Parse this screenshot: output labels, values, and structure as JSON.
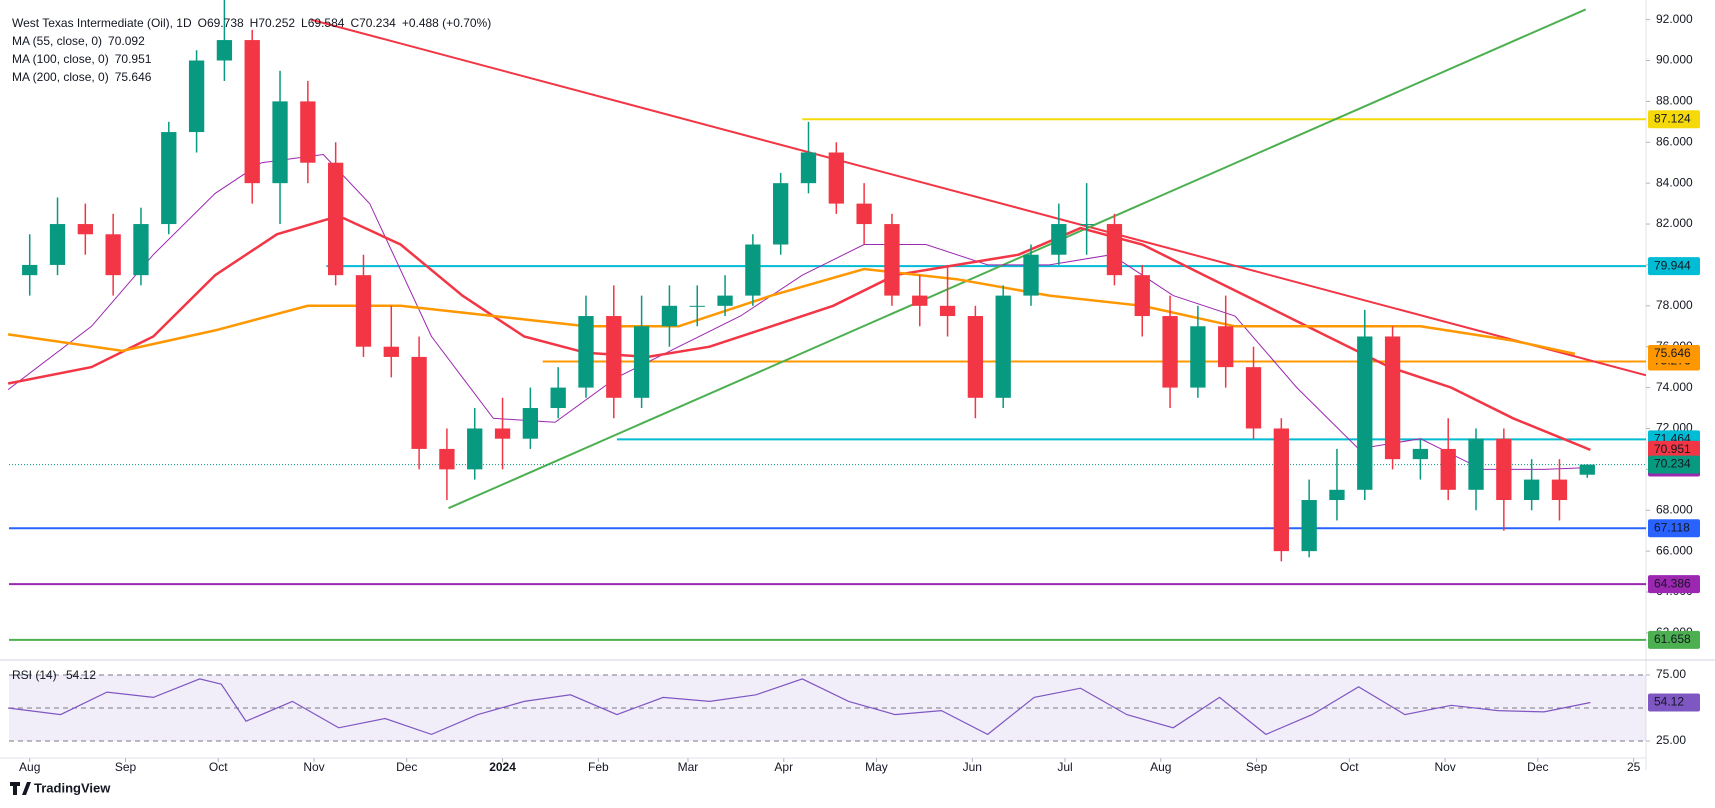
{
  "brand": "TradingView",
  "chart_data": {
    "type": "candlestick",
    "title": "West Texas Intermediate (Oil), 1D",
    "ohlc_labels": [
      "O69.738",
      "H70.252",
      "L69.584",
      "C70.234"
    ],
    "change_label": "+0.488 (+0.70%)",
    "x": [
      0,
      9,
      18,
      27,
      36,
      45,
      54,
      63,
      72,
      81,
      90,
      99,
      108,
      117,
      126,
      135,
      144,
      153,
      162,
      171,
      180,
      189,
      198,
      207,
      216,
      225,
      234,
      243,
      252,
      261,
      270,
      279,
      288,
      297,
      306,
      315,
      324,
      333,
      342,
      351,
      360,
      369,
      378,
      387,
      396,
      405,
      414,
      423,
      432,
      441,
      450,
      459,
      468,
      477,
      486,
      495,
      504
    ],
    "open": [
      79.5,
      80,
      82,
      81.5,
      79.5,
      82,
      86.5,
      90,
      91,
      84,
      88,
      85,
      79.5,
      76,
      75.5,
      71,
      70,
      72,
      71.5,
      73,
      74,
      77.5,
      73.5,
      77,
      78,
      78,
      78.5,
      81,
      84,
      85.5,
      83,
      82,
      78.5,
      78,
      77.5,
      73.5,
      78.5,
      80.5,
      82,
      82,
      79.5,
      77.5,
      74,
      77,
      75,
      72,
      66,
      68.5,
      69,
      76.5,
      70.5,
      71,
      69,
      71.5,
      68.5,
      69.5,
      69.738
    ],
    "high": [
      81.5,
      83.3,
      83,
      82.5,
      82.8,
      87,
      90.5,
      93.5,
      91.5,
      89.5,
      89,
      86,
      80.5,
      78,
      76.5,
      72,
      73,
      73.5,
      74,
      75,
      78.5,
      79,
      78.5,
      79,
      79,
      79.5,
      81.5,
      84.5,
      87,
      86,
      84,
      82.5,
      79.5,
      80,
      78,
      79,
      81,
      83,
      84,
      82.5,
      80,
      78.5,
      78,
      78.5,
      76,
      72.5,
      69.5,
      71,
      77.8,
      77,
      71.5,
      72.5,
      72,
      72,
      70.5,
      70.5,
      70.252
    ],
    "low": [
      78.5,
      79.5,
      80.5,
      78.5,
      79,
      81.5,
      85.5,
      89,
      83,
      82,
      84,
      79,
      75.5,
      74.5,
      70,
      68.5,
      69.5,
      70,
      71,
      72.5,
      73.5,
      72.5,
      73,
      76,
      77,
      77.5,
      78,
      80.5,
      83.5,
      82.5,
      81,
      78,
      77,
      76.5,
      72.5,
      73,
      78,
      80,
      80.5,
      79,
      76.5,
      73,
      73.5,
      74,
      71.5,
      65.5,
      65.7,
      67.5,
      68.5,
      70,
      69.5,
      68.5,
      68,
      67,
      68,
      67.5,
      69.584
    ],
    "close": [
      80,
      82,
      81.5,
      79.5,
      82,
      86.5,
      90,
      91,
      84,
      88,
      85,
      79.5,
      76,
      75.5,
      71,
      70,
      72,
      71.5,
      73,
      74,
      77.5,
      73.5,
      77,
      78,
      78,
      78.5,
      81,
      84,
      85.5,
      83,
      82,
      78.5,
      78,
      77.5,
      73.5,
      78.5,
      80.5,
      82,
      82,
      79.5,
      77.5,
      74,
      77,
      75,
      72,
      66,
      68.5,
      69,
      76.5,
      70.5,
      71,
      69,
      71.5,
      68.5,
      69.5,
      68.5,
      70.234
    ],
    "up_color": "#089981",
    "down_color": "#f23645",
    "xlim": [
      -6.7,
      523
    ],
    "ylim": [
      60.87,
      92.96
    ],
    "grid": false,
    "xticks": [
      {
        "value": 0,
        "label": "Aug"
      },
      {
        "value": 31,
        "label": "Sep"
      },
      {
        "value": 61,
        "label": "Oct"
      },
      {
        "value": 92,
        "label": "Nov"
      },
      {
        "value": 122,
        "label": "Dec"
      },
      {
        "value": 153,
        "label": "2024"
      },
      {
        "value": 184,
        "label": "Feb"
      },
      {
        "value": 213,
        "label": "Mar"
      },
      {
        "value": 244,
        "label": "Apr"
      },
      {
        "value": 274,
        "label": "May"
      },
      {
        "value": 305,
        "label": "Jun"
      },
      {
        "value": 335,
        "label": "Jul"
      },
      {
        "value": 366,
        "label": "Aug"
      },
      {
        "value": 397,
        "label": "Sep"
      },
      {
        "value": 427,
        "label": "Oct"
      },
      {
        "value": 458,
        "label": "Nov"
      },
      {
        "value": 488,
        "label": "Dec"
      },
      {
        "value": 519,
        "label": "25"
      }
    ],
    "yticks": [
      {
        "value": 62,
        "label": "62.000"
      },
      {
        "value": 64,
        "label": "64.000"
      },
      {
        "value": 66,
        "label": "66.000"
      },
      {
        "value": 68,
        "label": "68.000"
      },
      {
        "value": 70,
        "label": "70.000"
      },
      {
        "value": 72,
        "label": "72.000"
      },
      {
        "value": 74,
        "label": "74.000"
      },
      {
        "value": 76,
        "label": "76.000"
      },
      {
        "value": 78,
        "label": "78.000"
      },
      {
        "value": 80,
        "label": "80.000"
      },
      {
        "value": 82,
        "label": "82.000"
      },
      {
        "value": 84,
        "label": "84.000"
      },
      {
        "value": 86,
        "label": "86.000"
      },
      {
        "value": 88,
        "label": "88.000"
      },
      {
        "value": 90,
        "label": "90.000"
      },
      {
        "value": 92,
        "label": "92.000"
      }
    ],
    "ma": [
      {
        "name": "MA (55, close, 0)",
        "color": "#9c27b0",
        "x": [
          -7,
          20,
          40,
          60,
          75,
          95,
          110,
          130,
          150,
          170,
          190,
          210,
          230,
          250,
          270,
          290,
          310,
          330,
          350,
          370,
          390,
          410,
          430,
          450,
          470,
          490,
          505
        ],
        "values": [
          73.9,
          77,
          80.5,
          83.5,
          85,
          85.4,
          83,
          76.5,
          72.5,
          72.3,
          74.5,
          76,
          77.5,
          79.5,
          81,
          81,
          80,
          80,
          80.5,
          78.5,
          77.5,
          74,
          71,
          71.5,
          70,
          70,
          70.092
        ]
      },
      {
        "name": "MA (100, close, 0)",
        "color": "#f23645",
        "x": [
          -7,
          20,
          40,
          60,
          80,
          100,
          120,
          140,
          160,
          180,
          200,
          220,
          240,
          260,
          280,
          300,
          320,
          340,
          360,
          380,
          400,
          420,
          440,
          460,
          480,
          505
        ],
        "values": [
          74.2,
          75,
          76.5,
          79.5,
          81.5,
          82.4,
          81,
          78.5,
          76.5,
          75.7,
          75.5,
          76,
          77,
          78,
          79.5,
          80,
          80.5,
          81.8,
          81,
          79.5,
          78,
          76.5,
          75,
          74,
          72.5,
          70.951
        ]
      },
      {
        "name": "MA (200, close, 0)",
        "color": "#ff9800",
        "x": [
          -7,
          30,
          60,
          90,
          120,
          150,
          180,
          210,
          240,
          270,
          300,
          330,
          360,
          390,
          420,
          450,
          480,
          500
        ],
        "values": [
          76.6,
          75.8,
          76.8,
          78,
          78,
          77.5,
          77,
          77,
          78.5,
          79.8,
          79.3,
          78.5,
          78,
          77,
          77,
          77,
          76.3,
          75.646
        ]
      }
    ],
    "levels": [
      {
        "value": 87.124,
        "from": 250,
        "color": "#f5d90a"
      },
      {
        "value": 79.944,
        "from": 96,
        "color": "#00bcd4"
      },
      {
        "value": 75.276,
        "from": 166,
        "color": "#ff9800"
      },
      {
        "value": 71.464,
        "from": 190,
        "color": "#00bcd4"
      },
      {
        "value": 67.118,
        "from": -6.7,
        "color": "#2962ff"
      },
      {
        "value": 64.386,
        "from": -6.7,
        "color": "#9c27b0"
      },
      {
        "value": 61.658,
        "from": -6.7,
        "color": "#4caf50"
      }
    ],
    "trendlines": [
      {
        "x": [
          91,
          523
        ],
        "values": [
          92,
          74.6
        ],
        "color": "#f23645"
      },
      {
        "x": [
          135.5,
          503.5
        ],
        "values": [
          68.1,
          92.5
        ],
        "color": "#4caf50"
      }
    ],
    "rsi": {
      "name": "RSI (14)",
      "color": "#7e57c2",
      "x": [
        -7,
        10,
        25,
        40,
        55,
        62,
        70,
        85,
        100,
        115,
        130,
        145,
        160,
        175,
        190,
        205,
        220,
        235,
        250,
        265,
        280,
        295,
        310,
        325,
        340,
        355,
        370,
        385,
        400,
        415,
        430,
        445,
        460,
        475,
        490,
        505
      ],
      "values": [
        50,
        45,
        62,
        58,
        72,
        68,
        40,
        55,
        35,
        42,
        30,
        45,
        55,
        60,
        45,
        58,
        55,
        60,
        72,
        55,
        45,
        48,
        30,
        58,
        65,
        45,
        35,
        58,
        30,
        45,
        66,
        45,
        52,
        48,
        47,
        54.12
      ],
      "ylim": [
        14.4,
        84.8
      ],
      "yticks": [
        {
          "value": 75,
          "label": "75.00"
        },
        {
          "value": 25,
          "label": "25.00"
        }
      ],
      "bands": [
        25,
        50,
        75
      ]
    }
  }
}
